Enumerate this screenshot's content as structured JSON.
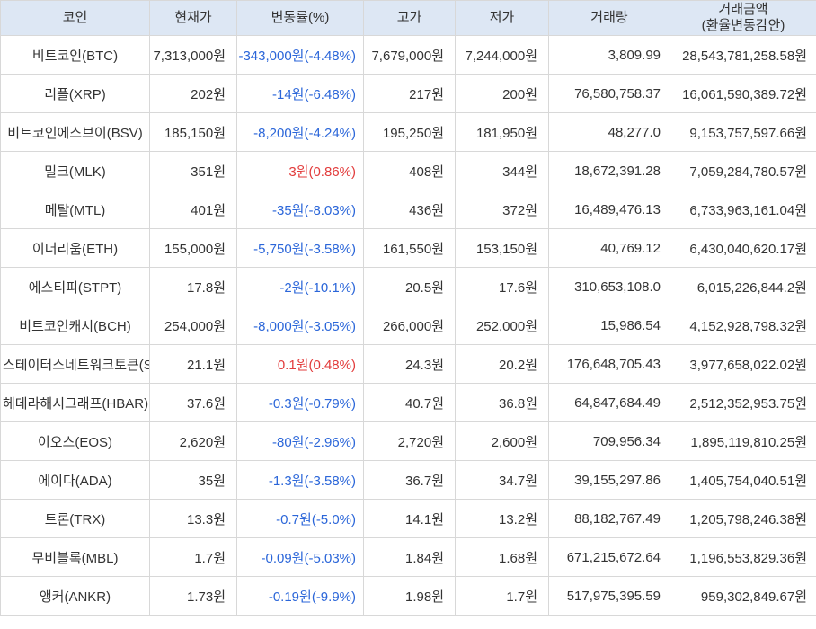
{
  "colors": {
    "up": "#e23b3b",
    "down": "#2b66d9",
    "header_bg": "#dde7f4",
    "border": "#d8d8d8"
  },
  "table": {
    "columns": [
      {
        "key": "name",
        "label": "코인"
      },
      {
        "key": "price",
        "label": "현재가"
      },
      {
        "key": "change",
        "label": "변동률(%)"
      },
      {
        "key": "high",
        "label": "고가"
      },
      {
        "key": "low",
        "label": "저가"
      },
      {
        "key": "volume",
        "label": "거래량"
      },
      {
        "key": "amount",
        "label": "거래금액",
        "sublabel": "(환율변동감안)"
      }
    ],
    "rows": [
      {
        "name": "비트코인(BTC)",
        "price": "7,313,000원",
        "change": "-343,000원(-4.48%)",
        "direction": "down",
        "high": "7,679,000원",
        "low": "7,244,000원",
        "volume": "3,809.99",
        "amount": "28,543,781,258.58원"
      },
      {
        "name": "리플(XRP)",
        "price": "202원",
        "change": "-14원(-6.48%)",
        "direction": "down",
        "high": "217원",
        "low": "200원",
        "volume": "76,580,758.37",
        "amount": "16,061,590,389.72원"
      },
      {
        "name": "비트코인에스브이(BSV)",
        "price": "185,150원",
        "change": "-8,200원(-4.24%)",
        "direction": "down",
        "high": "195,250원",
        "low": "181,950원",
        "volume": "48,277.0",
        "amount": "9,153,757,597.66원"
      },
      {
        "name": "밀크(MLK)",
        "price": "351원",
        "change": "3원(0.86%)",
        "direction": "up",
        "high": "408원",
        "low": "344원",
        "volume": "18,672,391.28",
        "amount": "7,059,284,780.57원"
      },
      {
        "name": "메탈(MTL)",
        "price": "401원",
        "change": "-35원(-8.03%)",
        "direction": "down",
        "high": "436원",
        "low": "372원",
        "volume": "16,489,476.13",
        "amount": "6,733,963,161.04원"
      },
      {
        "name": "이더리움(ETH)",
        "price": "155,000원",
        "change": "-5,750원(-3.58%)",
        "direction": "down",
        "high": "161,550원",
        "low": "153,150원",
        "volume": "40,769.12",
        "amount": "6,430,040,620.17원"
      },
      {
        "name": "에스티피(STPT)",
        "price": "17.8원",
        "change": "-2원(-10.1%)",
        "direction": "down",
        "high": "20.5원",
        "low": "17.6원",
        "volume": "310,653,108.0",
        "amount": "6,015,226,844.2원"
      },
      {
        "name": "비트코인캐시(BCH)",
        "price": "254,000원",
        "change": "-8,000원(-3.05%)",
        "direction": "down",
        "high": "266,000원",
        "low": "252,000원",
        "volume": "15,986.54",
        "amount": "4,152,928,798.32원"
      },
      {
        "name": "스테이터스네트워크토큰(SNT)",
        "price": "21.1원",
        "change": "0.1원(0.48%)",
        "direction": "up",
        "high": "24.3원",
        "low": "20.2원",
        "volume": "176,648,705.43",
        "amount": "3,977,658,022.02원"
      },
      {
        "name": "헤데라해시그래프(HBAR)",
        "price": "37.6원",
        "change": "-0.3원(-0.79%)",
        "direction": "down",
        "high": "40.7원",
        "low": "36.8원",
        "volume": "64,847,684.49",
        "amount": "2,512,352,953.75원"
      },
      {
        "name": "이오스(EOS)",
        "price": "2,620원",
        "change": "-80원(-2.96%)",
        "direction": "down",
        "high": "2,720원",
        "low": "2,600원",
        "volume": "709,956.34",
        "amount": "1,895,119,810.25원"
      },
      {
        "name": "에이다(ADA)",
        "price": "35원",
        "change": "-1.3원(-3.58%)",
        "direction": "down",
        "high": "36.7원",
        "low": "34.7원",
        "volume": "39,155,297.86",
        "amount": "1,405,754,040.51원"
      },
      {
        "name": "트론(TRX)",
        "price": "13.3원",
        "change": "-0.7원(-5.0%)",
        "direction": "down",
        "high": "14.1원",
        "low": "13.2원",
        "volume": "88,182,767.49",
        "amount": "1,205,798,246.38원"
      },
      {
        "name": "무비블록(MBL)",
        "price": "1.7원",
        "change": "-0.09원(-5.03%)",
        "direction": "down",
        "high": "1.84원",
        "low": "1.68원",
        "volume": "671,215,672.64",
        "amount": "1,196,553,829.36원"
      },
      {
        "name": "앵커(ANKR)",
        "price": "1.73원",
        "change": "-0.19원(-9.9%)",
        "direction": "down",
        "high": "1.98원",
        "low": "1.7원",
        "volume": "517,975,395.59",
        "amount": "959,302,849.67원"
      }
    ]
  }
}
